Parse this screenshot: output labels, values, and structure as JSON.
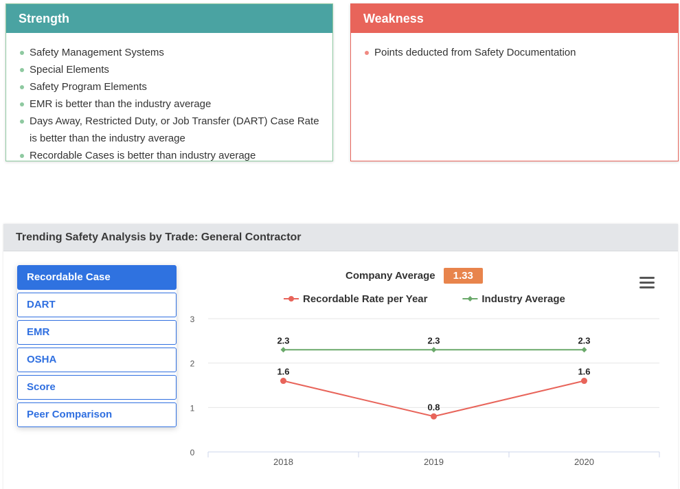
{
  "strength": {
    "title": "Strength",
    "items": [
      "Safety Management Systems",
      "Special Elements",
      "Safety Program Elements",
      "EMR is better than the industry average",
      "Days Away, Restricted Duty, or Job Transfer (DART) Case Rate is better than the industry average",
      "Recordable Cases is better than industry average"
    ]
  },
  "weakness": {
    "title": "Weakness",
    "items": [
      "Points deducted from Safety Documentation"
    ]
  },
  "trend": {
    "title": "Trending Safety Analysis by Trade: General Contractor",
    "tabs": [
      "Recordable Case",
      "DART",
      "EMR",
      "OSHA",
      "Score",
      "Peer Comparison"
    ],
    "active_tab": "Recordable Case",
    "company_average_label": "Company Average",
    "company_average_value": "1.33"
  },
  "colors": {
    "strength": "#4aa3a2",
    "weakness": "#e8645a",
    "accent": "#2f72e0",
    "company_badge": "#e8844c",
    "series_recordable": "#e8645a",
    "series_industry": "#6aa96a"
  },
  "icons": {
    "chart_menu": "hamburger-menu-icon"
  },
  "chart_data": {
    "type": "line",
    "categories": [
      "2018",
      "2019",
      "2020"
    ],
    "series": [
      {
        "name": "Recordable Rate per Year",
        "values": [
          1.6,
          0.8,
          1.6
        ],
        "color": "#e8645a",
        "marker": "circle"
      },
      {
        "name": "Industry Average",
        "values": [
          2.3,
          2.3,
          2.3
        ],
        "color": "#6aa96a",
        "marker": "diamond"
      }
    ],
    "yticks": [
      0,
      1,
      2,
      3
    ],
    "ylim": [
      0,
      3
    ],
    "xlabel": "",
    "ylabel": "",
    "grid": true,
    "legend": "top-center",
    "data_labels": true
  }
}
